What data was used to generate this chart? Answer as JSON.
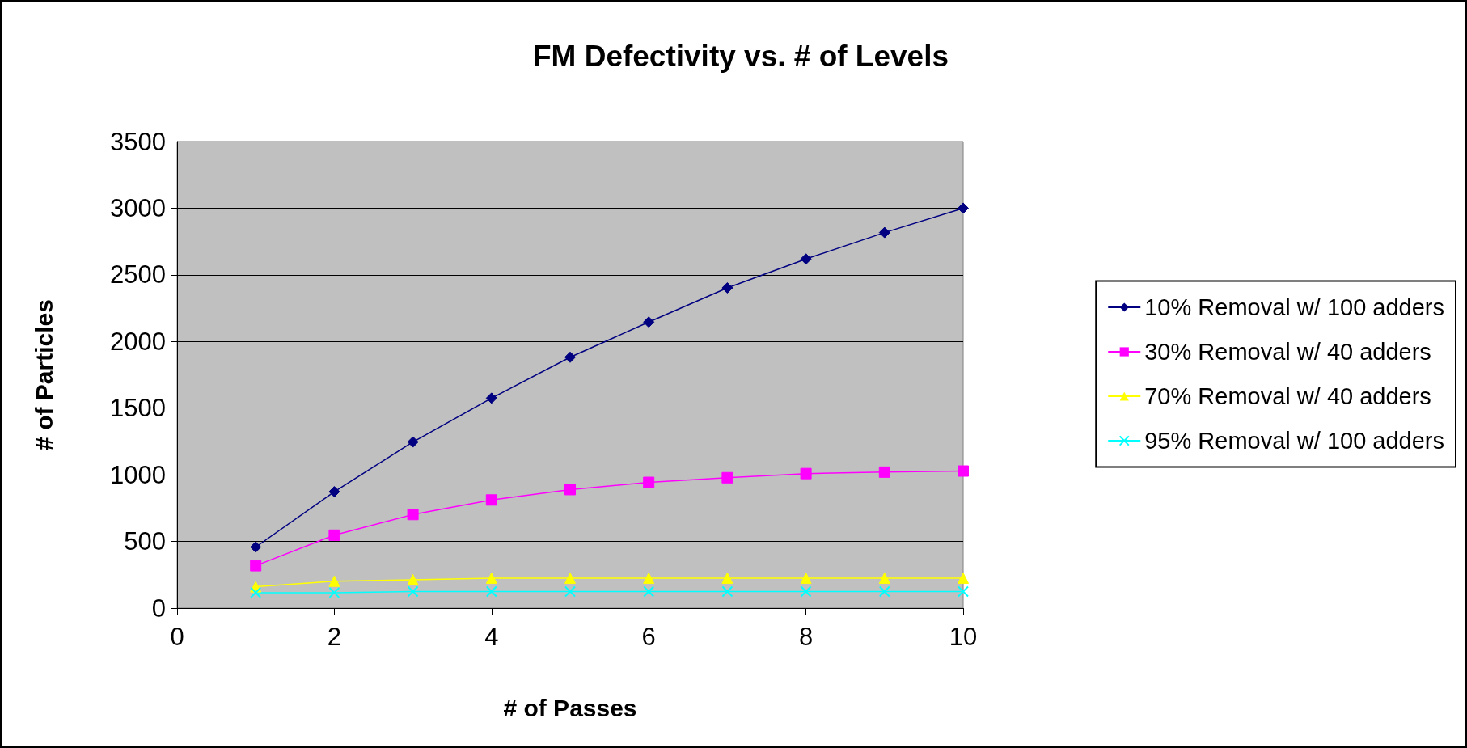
{
  "chart_data": {
    "type": "line",
    "title": "FM Defectivity vs. # of Levels",
    "xlabel": "# of Passes",
    "ylabel": "# of Particles",
    "x": [
      1,
      2,
      3,
      4,
      5,
      6,
      7,
      8,
      9,
      10
    ],
    "series": [
      {
        "name": "10% Removal w/ 100 adders",
        "color": "#000080",
        "marker": "diamond",
        "values": [
          458,
          873,
          1246,
          1575,
          1882,
          2146,
          2402,
          2619,
          2817,
          3000
        ]
      },
      {
        "name": "30% Removal w/ 40 adders",
        "color": "#ff00ff",
        "marker": "square",
        "values": [
          318,
          547,
          702,
          811,
          889,
          943,
          978,
          1009,
          1020,
          1028
        ]
      },
      {
        "name": "70% Removal w/ 40 adders",
        "color": "#ffff00",
        "marker": "triangle",
        "values": [
          160,
          202,
          213,
          225,
          225,
          225,
          225,
          225,
          225,
          225
        ]
      },
      {
        "name": "95% Removal w/ 100 adders",
        "color": "#00ffff",
        "marker": "cross",
        "values": [
          116,
          116,
          124,
          124,
          124,
          124,
          124,
          124,
          124,
          124
        ]
      }
    ],
    "xlim": [
      0,
      10
    ],
    "xticks": [
      0,
      2,
      4,
      6,
      8,
      10
    ],
    "ylim": [
      0,
      3500
    ],
    "yticks": [
      0,
      500,
      1000,
      1500,
      2000,
      2500,
      3000,
      3500
    ],
    "grid": "y",
    "legend": "right",
    "line_style": "solid"
  }
}
